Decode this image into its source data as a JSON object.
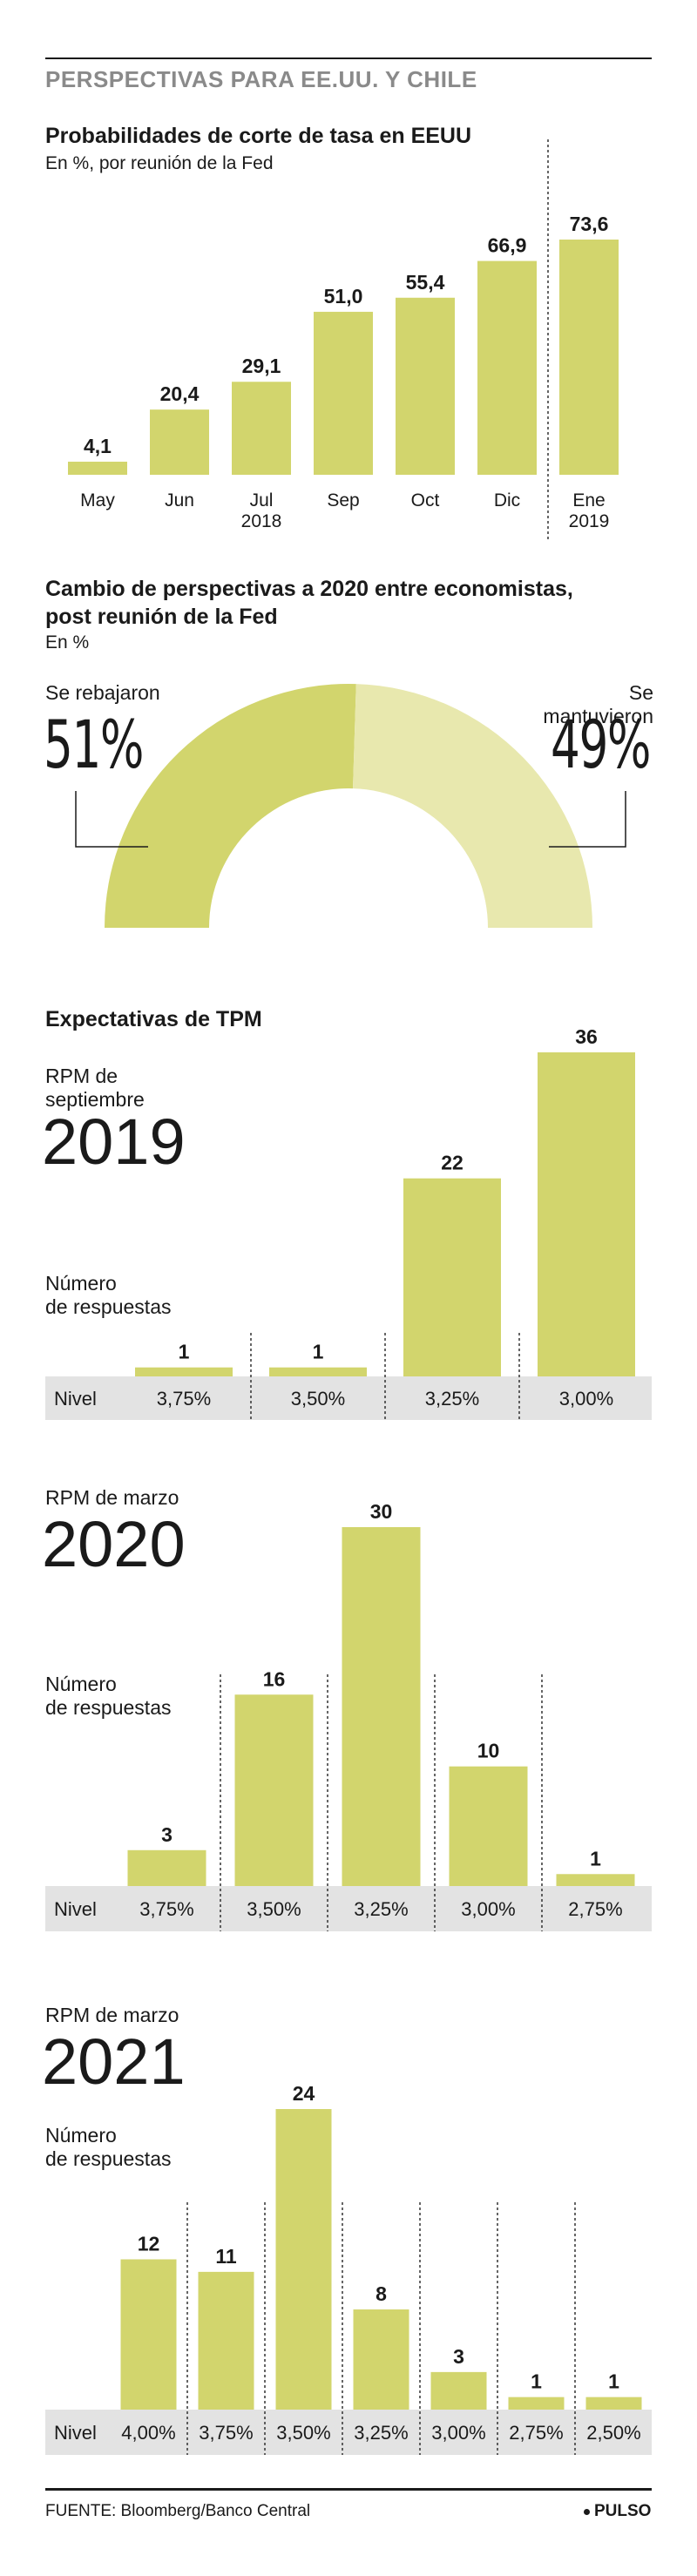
{
  "header": {
    "title": "PERSPECTIVAS PARA EE.UU. Y CHILE"
  },
  "colors": {
    "bar": "#d2d56d",
    "bar_light": "#e8e8ae",
    "band": "#e3e3e3",
    "rule": "#1a1a1a",
    "header_text": "#8a8a8a"
  },
  "fed": {
    "title": "Probabilidades de corte de tasa en EEUU",
    "subtitle": "En %, por reunión de la Fed",
    "year_labels": [
      "2018",
      "2019"
    ]
  },
  "poll": {
    "title_line1": "Cambio de perspectivas a 2020 entre economistas,",
    "title_line2": "post reunión de la Fed",
    "subtitle": "En %",
    "left_label": "Se rebajaron",
    "left_value": "51%",
    "right_label": "Se mantuvieron",
    "right_value": "49%"
  },
  "tpm": {
    "title": "Expectativas de TPM",
    "axis_label_line1": "Número",
    "axis_label_line2": "de respuestas",
    "level_label": "Nivel",
    "rpm2019": {
      "line1": "RPM de",
      "line2": "septiembre",
      "year": "2019"
    },
    "rpm2020": {
      "line1": "RPM de marzo",
      "year": "2020"
    },
    "rpm2021": {
      "line1": "RPM de marzo",
      "year": "2021"
    }
  },
  "footer": {
    "source": "FUENTE: Bloomberg/Banco Central",
    "brand": "PULSO"
  },
  "chart_data": [
    {
      "type": "bar",
      "title": "Probabilidades de corte de tasa en EEUU",
      "subtitle": "En %, por reunión de la Fed",
      "categories": [
        "May",
        "Jun",
        "Jul",
        "Sep",
        "Oct",
        "Dic",
        "Ene"
      ],
      "values": [
        4.1,
        20.4,
        29.1,
        51.0,
        55.4,
        66.9,
        73.6
      ],
      "labels": [
        "4,1",
        "20,4",
        "29,1",
        "51,0",
        "55,4",
        "66,9",
        "73,6"
      ],
      "ylim": [
        0,
        80
      ]
    },
    {
      "type": "pie",
      "title": "Cambio de perspectivas a 2020 entre economistas, post reunión de la Fed",
      "subtitle": "En %",
      "categories": [
        "Se rebajaron",
        "Se mantuvieron"
      ],
      "values": [
        51,
        49
      ]
    },
    {
      "type": "bar",
      "title": "RPM de septiembre 2019",
      "ylabel": "Número de respuestas",
      "xlabel": "Nivel",
      "categories": [
        "3,75%",
        "3,50%",
        "3,25%",
        "3,00%"
      ],
      "values": [
        1,
        1,
        22,
        36
      ],
      "ylim": [
        0,
        36
      ]
    },
    {
      "type": "bar",
      "title": "RPM de marzo 2020",
      "ylabel": "Número de respuestas",
      "xlabel": "Nivel",
      "categories": [
        "3,75%",
        "3,50%",
        "3,25%",
        "3,00%",
        "2,75%"
      ],
      "values": [
        3,
        16,
        30,
        10,
        1
      ],
      "ylim": [
        0,
        30
      ]
    },
    {
      "type": "bar",
      "title": "RPM de marzo 2021",
      "ylabel": "Número de respuestas",
      "xlabel": "Nivel",
      "categories": [
        "4,00%",
        "3,75%",
        "3,50%",
        "3,25%",
        "3,00%",
        "2,75%",
        "2,50%"
      ],
      "values": [
        12,
        11,
        24,
        8,
        3,
        1,
        1
      ],
      "ylim": [
        0,
        24
      ]
    }
  ]
}
